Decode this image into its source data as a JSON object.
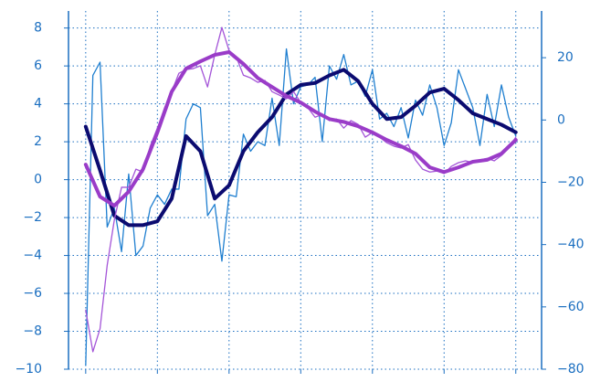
{
  "chart_data": {
    "type": "line",
    "xlim": [
      -2.4,
      63.6
    ],
    "xticks": [
      0,
      10,
      20,
      30,
      40,
      50,
      60
    ],
    "xtick_labels": false,
    "ylim": [
      -10,
      8.9
    ],
    "yticks": [
      {
        "value": -10,
        "label": "−10"
      },
      {
        "value": -8,
        "label": "−8"
      },
      {
        "value": -6,
        "label": "−6"
      },
      {
        "value": -4,
        "label": "−4"
      },
      {
        "value": -2,
        "label": "−2"
      },
      0,
      2,
      4,
      6,
      8
    ],
    "y2lim": [
      -80,
      35
    ],
    "y2ticks": [
      {
        "value": -80,
        "label": "−80"
      },
      {
        "value": -60,
        "label": "−60"
      },
      {
        "value": -40,
        "label": "−40"
      },
      {
        "value": -20,
        "label": "−20"
      },
      0,
      20
    ],
    "grid": true,
    "axis_color": "#1a6ec0",
    "series": [
      {
        "color": "#1f7fd0",
        "width": 1.3,
        "x": [
          0,
          1,
          2,
          3,
          4,
          5,
          6,
          7,
          8,
          9,
          10,
          11,
          12,
          13,
          14,
          15,
          16,
          17,
          18,
          19,
          20,
          21,
          22,
          23,
          24,
          25,
          26,
          27,
          28,
          29,
          30,
          31,
          32,
          33,
          34,
          35,
          36,
          37,
          38,
          39,
          40,
          41,
          42,
          43,
          44,
          45,
          46,
          47,
          48,
          49,
          50,
          51,
          52,
          53,
          54,
          55,
          56,
          57,
          58,
          59,
          60
        ],
        "values": [
          -9.8,
          5.5,
          6.2,
          -2.5,
          -1.5,
          -3.8,
          0.3,
          -4,
          -3.5,
          -1.5,
          -0.8,
          -1.3,
          -0.5,
          -0.5,
          3.2,
          4.0,
          3.8,
          -1.9,
          -1.3,
          -4.3,
          -0.8,
          -0.9,
          2.4,
          1.5,
          2.0,
          1.8,
          4.3,
          1.8,
          6.9,
          4.0,
          4.9,
          5.0,
          5.4,
          2.0,
          6.0,
          5.3,
          6.6,
          5.0,
          5.2,
          4.4,
          5.8,
          3.2,
          3.5,
          2.8,
          3.8,
          2.2,
          4.2,
          3.4,
          5.0,
          3.8,
          1.8,
          3.0,
          5.8,
          4.8,
          3.8,
          1.8,
          4.5,
          2.8,
          5.0,
          3.3,
          2.3
        ]
      },
      {
        "color": "#0b0b70",
        "width": 4,
        "x": [
          0,
          2,
          4,
          6,
          8,
          10,
          12,
          14,
          16,
          18,
          20,
          22,
          24,
          26,
          28,
          30,
          32,
          34,
          36,
          38,
          40,
          42,
          44,
          46,
          48,
          50,
          52,
          54,
          56,
          58,
          60
        ],
        "values": [
          2.8,
          0.5,
          -1.9,
          -2.4,
          -2.4,
          -2.2,
          -1.0,
          2.3,
          1.5,
          -1.0,
          -0.3,
          1.5,
          2.5,
          3.3,
          4.5,
          5.0,
          5.1,
          5.5,
          5.8,
          5.2,
          4.0,
          3.2,
          3.3,
          3.9,
          4.6,
          4.8,
          4.2,
          3.5,
          3.2,
          2.9,
          2.5
        ]
      },
      {
        "color": "#a455d8",
        "width": 1.3,
        "axis": "y2",
        "x": [
          0,
          1,
          2,
          3,
          4,
          5,
          6,
          7,
          8,
          9,
          10,
          11,
          12,
          13,
          14,
          15,
          16,
          17,
          18,
          19,
          20,
          21,
          22,
          23,
          24,
          25,
          26,
          27,
          28,
          29,
          30,
          31,
          32,
          33,
          34,
          35,
          36,
          37,
          38,
          39,
          40,
          41,
          42,
          43,
          44,
          45,
          46,
          47,
          48,
          49,
          50,
          51,
          52,
          53,
          54,
          55,
          56,
          57,
          58,
          59,
          60
        ],
        "values": [
          -61,
          -74.4,
          -67,
          -46.6,
          -32,
          -21.6,
          -21.6,
          -15.8,
          -16.7,
          -8.4,
          -2.6,
          3.9,
          9.1,
          15,
          16.2,
          16.5,
          17.4,
          10.6,
          20.9,
          29.7,
          22.3,
          20.3,
          14.4,
          13.5,
          12.1,
          12.7,
          9.1,
          8.0,
          6.8,
          9.1,
          5.6,
          3.9,
          0.9,
          1.8,
          -0.2,
          0.3,
          -2.6,
          -0.2,
          -1.4,
          -5.5,
          -4,
          -5.5,
          -7.3,
          -8.4,
          -9,
          -7.9,
          -12.8,
          -15.8,
          -16.7,
          -16.4,
          -17.2,
          -14.9,
          -13.7,
          -13.1,
          -13.7,
          -12.8,
          -12.3,
          -13.1,
          -11.4,
          -9,
          -5.5
        ]
      },
      {
        "color": "#9a3cc8",
        "width": 4,
        "axis": "y2",
        "x": [
          0,
          2,
          4,
          6,
          8,
          10,
          12,
          14,
          16,
          18,
          20,
          22,
          24,
          26,
          28,
          30,
          32,
          34,
          36,
          38,
          40,
          42,
          44,
          46,
          48,
          50,
          52,
          54,
          56,
          58,
          60
        ],
        "values": [
          -14.3,
          -24.6,
          -27.5,
          -23,
          -15.8,
          -4,
          9.1,
          16.5,
          18.8,
          20.9,
          21.8,
          18,
          13.5,
          10.6,
          7.7,
          5.6,
          2.7,
          0.3,
          -0.6,
          -2,
          -4,
          -6.4,
          -8.4,
          -10.8,
          -15.2,
          -16.7,
          -15.2,
          -13.4,
          -12.8,
          -10.8,
          -6.4
        ]
      }
    ]
  }
}
